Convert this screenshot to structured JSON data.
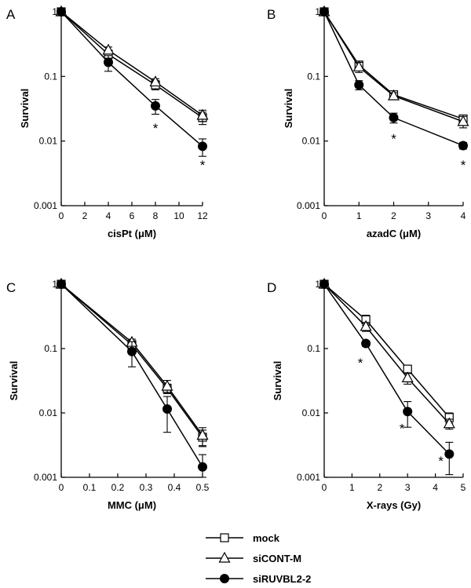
{
  "chart_data": [
    {
      "type": "line",
      "panel_label": "A",
      "xlabel": "cisPt (μM)",
      "ylabel": "Survival",
      "yscale": "log",
      "ylim": [
        0.001,
        1
      ],
      "xlim": [
        0,
        12
      ],
      "xticks": [
        0,
        2,
        4,
        6,
        8,
        10,
        12
      ],
      "yticks": [
        {
          "value": 1,
          "label": "1"
        },
        {
          "value": 0.1,
          "label": "0.1"
        },
        {
          "value": 0.01,
          "label": "0.01"
        },
        {
          "value": 0.001,
          "label": "0.001"
        }
      ],
      "series": [
        {
          "name": "mock",
          "marker": "square",
          "x": [
            0,
            4,
            8,
            12
          ],
          "y": [
            1,
            0.22,
            0.074,
            0.023
          ],
          "err": [
            0,
            0.035,
            0.012,
            0.005
          ]
        },
        {
          "name": "siCONT-M",
          "marker": "triangle",
          "x": [
            0,
            4,
            8,
            12
          ],
          "y": [
            1,
            0.255,
            0.082,
            0.025
          ],
          "err": [
            0,
            0.03,
            0.01,
            0.005
          ]
        },
        {
          "name": "siRUVBL2-2",
          "marker": "circle",
          "x": [
            0,
            4,
            8,
            12
          ],
          "y": [
            1,
            0.165,
            0.035,
            0.0083
          ],
          "err": [
            0,
            0.045,
            0.009,
            0.0025
          ]
        }
      ],
      "annotations": [
        {
          "text": "*",
          "x": 8,
          "y": 0.016
        },
        {
          "text": "*",
          "x": 12,
          "y": 0.0043
        }
      ]
    },
    {
      "type": "line",
      "panel_label": "B",
      "xlabel": "azadC (μM)",
      "ylabel": "Survival",
      "yscale": "log",
      "ylim": [
        0.001,
        1
      ],
      "xlim": [
        0,
        4
      ],
      "xticks": [
        0,
        1,
        2,
        3,
        4
      ],
      "yticks": [
        {
          "value": 1,
          "label": "1"
        },
        {
          "value": 0.1,
          "label": "0.1"
        },
        {
          "value": 0.01,
          "label": "0.01"
        },
        {
          "value": 0.001,
          "label": "0.001"
        }
      ],
      "series": [
        {
          "name": "mock",
          "marker": "square",
          "x": [
            0,
            1,
            2,
            4
          ],
          "y": [
            1,
            0.15,
            0.052,
            0.022
          ],
          "err": [
            0,
            0.02,
            0.006,
            0.003
          ]
        },
        {
          "name": "siCONT-M",
          "marker": "triangle",
          "x": [
            0,
            1,
            2,
            4
          ],
          "y": [
            1,
            0.14,
            0.05,
            0.02
          ],
          "err": [
            0,
            0.025,
            0.006,
            0.004
          ]
        },
        {
          "name": "siRUVBL2-2",
          "marker": "circle",
          "x": [
            0,
            1,
            2,
            4
          ],
          "y": [
            1,
            0.074,
            0.023,
            0.0085
          ],
          "err": [
            0,
            0.012,
            0.004,
            0.001
          ]
        }
      ],
      "annotations": [
        {
          "text": "*",
          "x": 2,
          "y": 0.011
        },
        {
          "text": "*",
          "x": 4,
          "y": 0.0043
        }
      ]
    },
    {
      "type": "line",
      "panel_label": "C",
      "xlabel": "MMC (μM)",
      "ylabel": "Survival",
      "yscale": "log",
      "ylim": [
        0.001,
        1
      ],
      "xlim": [
        0,
        0.5
      ],
      "xticks": [
        0,
        0.1,
        0.2,
        0.3,
        0.4,
        0.5
      ],
      "yticks": [
        {
          "value": 1,
          "label": "1"
        },
        {
          "value": 0.1,
          "label": "0.1"
        },
        {
          "value": 0.01,
          "label": "0.01"
        },
        {
          "value": 0.001,
          "label": "0.001"
        }
      ],
      "series": [
        {
          "name": "mock",
          "marker": "square",
          "x": [
            0,
            0.25,
            0.375,
            0.5
          ],
          "y": [
            1,
            0.115,
            0.024,
            0.0042
          ],
          "err": [
            0,
            0.015,
            0.004,
            0.0012
          ]
        },
        {
          "name": "siCONT-M",
          "marker": "triangle",
          "x": [
            0,
            0.25,
            0.375,
            0.5
          ],
          "y": [
            1,
            0.125,
            0.026,
            0.0045
          ],
          "err": [
            0,
            0.015,
            0.006,
            0.0014
          ]
        },
        {
          "name": "siRUVBL2-2",
          "marker": "circle",
          "x": [
            0,
            0.25,
            0.375,
            0.5
          ],
          "y": [
            1,
            0.09,
            0.0115,
            0.00145
          ],
          "err": [
            0,
            0.038,
            0.0065,
            0.0008
          ]
        }
      ]
    },
    {
      "type": "line",
      "panel_label": "D",
      "xlabel": "X-rays (Gy)",
      "ylabel": "Survival",
      "yscale": "log",
      "ylim": [
        0.001,
        1
      ],
      "xlim": [
        0,
        5
      ],
      "xticks": [
        0,
        1,
        2,
        3,
        4,
        5
      ],
      "yticks": [
        {
          "value": 1,
          "label": "1"
        },
        {
          "value": 0.1,
          "label": "0.1"
        },
        {
          "value": 0.01,
          "label": "0.01"
        },
        {
          "value": 0.001,
          "label": "0.001"
        }
      ],
      "series": [
        {
          "name": "mock",
          "marker": "square",
          "x": [
            0,
            1.5,
            3,
            4.5
          ],
          "y": [
            1,
            0.28,
            0.048,
            0.0085
          ],
          "err": [
            0,
            0.05,
            0.007,
            0.0015
          ]
        },
        {
          "name": "siCONT-M",
          "marker": "triangle",
          "x": [
            0,
            1.5,
            3,
            4.5
          ],
          "y": [
            1,
            0.22,
            0.035,
            0.0068
          ],
          "err": [
            0,
            0.035,
            0.007,
            0.0012
          ]
        },
        {
          "name": "siRUVBL2-2",
          "marker": "circle",
          "x": [
            0,
            1.5,
            3,
            4.5
          ],
          "y": [
            1,
            0.12,
            0.0105,
            0.0023
          ],
          "err": [
            0,
            0.012,
            0.0045,
            0.0012
          ]
        }
      ],
      "annotations": [
        {
          "text": "*",
          "x": 1.3,
          "y": 0.06
        },
        {
          "text": "*",
          "x": 2.8,
          "y": 0.0058
        },
        {
          "text": "*",
          "x": 4.2,
          "y": 0.0018
        }
      ]
    }
  ],
  "legend": {
    "placement": "bottom-center",
    "items": [
      {
        "label": "mock",
        "marker": "square"
      },
      {
        "label": "siCONT-M",
        "marker": "triangle"
      },
      {
        "label": "siRUVBL2-2",
        "marker": "circle"
      }
    ]
  },
  "colors": {
    "line": "#000000",
    "marker_fill_open": "#ffffff",
    "marker_fill_closed": "#000000",
    "background": "#ffffff"
  }
}
